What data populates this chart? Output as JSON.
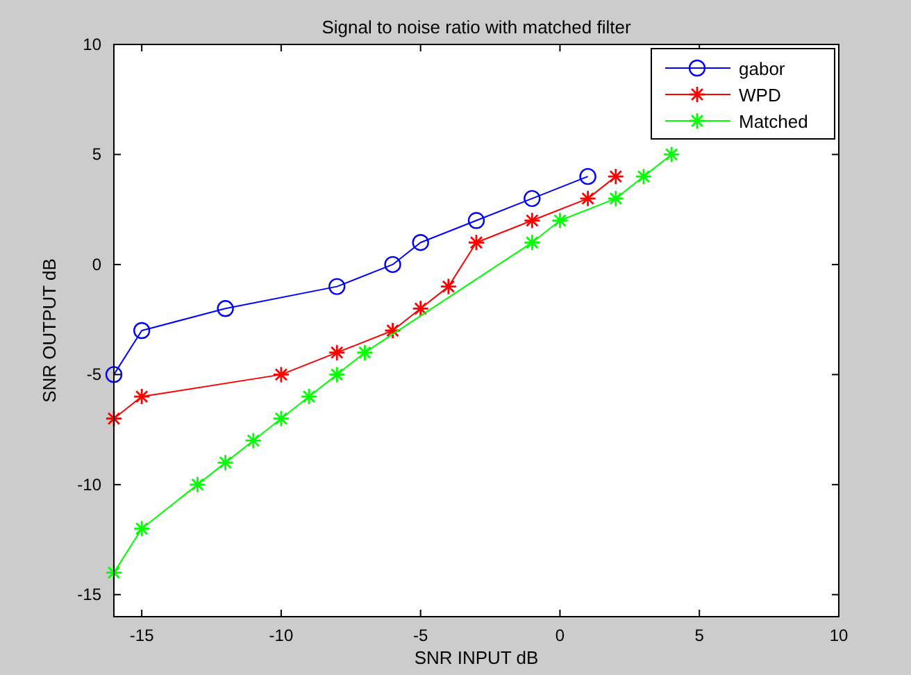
{
  "chart_data": {
    "type": "line",
    "title": "Signal to noise ratio with matched filter",
    "xlabel": "SNR INPUT dB",
    "ylabel": "SNR OUTPUT dB",
    "xlim": [
      -16,
      10
    ],
    "xticks": [
      -15,
      -10,
      -5,
      0,
      5,
      10
    ],
    "ylim": [
      -16,
      10
    ],
    "yticks": [
      -15,
      -10,
      -5,
      0,
      5,
      10
    ],
    "grid": false,
    "legend": "top right",
    "series": [
      {
        "name": "gabor",
        "color": "#0000ff",
        "marker": "circle",
        "x": [
          -16,
          -15,
          -12,
          -8,
          -6,
          -5,
          -3,
          -1,
          1
        ],
        "values": [
          -5,
          -3,
          -2,
          -1,
          0,
          1,
          2,
          3,
          4
        ]
      },
      {
        "name": "WPD",
        "color": "#ff0000",
        "marker": "cross",
        "x": [
          -16,
          -15,
          -10,
          -8,
          -6,
          -5,
          -4,
          -3,
          -1,
          1,
          2
        ],
        "values": [
          -7,
          -6,
          -5,
          -4,
          -3,
          -2,
          -1,
          1,
          2,
          3,
          4
        ]
      },
      {
        "name": "Matched",
        "color": "#00ff00",
        "marker": "cross",
        "x": [
          -16,
          -15,
          -13,
          -12,
          -11,
          -10,
          -9,
          -8,
          -7,
          -1,
          0,
          2,
          3,
          4
        ],
        "values": [
          -14,
          -12,
          -10,
          -9,
          -8,
          -7,
          -6,
          -5,
          -4,
          1,
          2,
          3,
          4,
          5
        ]
      }
    ]
  }
}
